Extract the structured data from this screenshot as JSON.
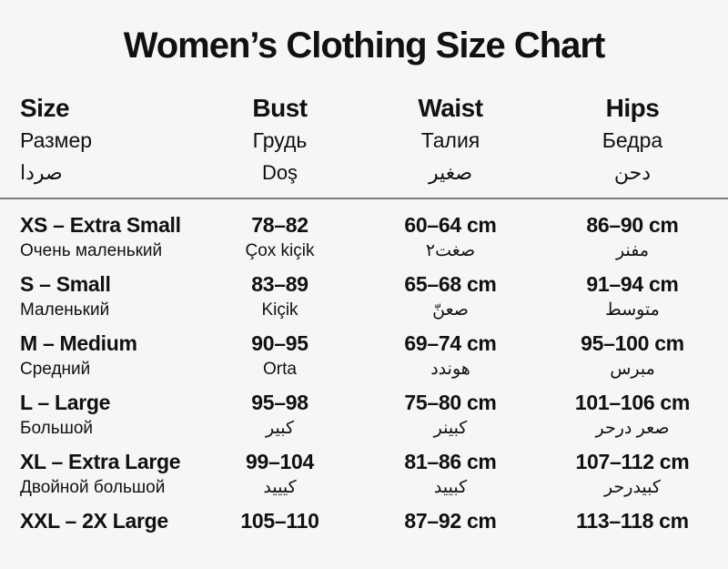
{
  "title": "Women’s Clothing Size Chart",
  "colors": {
    "background": "#f6f6f6",
    "text": "#111111",
    "divider": "#7d7d7d"
  },
  "header": {
    "columns": [
      {
        "en": "Size",
        "ru": "Размер",
        "ar": "صردا"
      },
      {
        "en": "Bust",
        "ru": "Грудь",
        "ar": "Doş"
      },
      {
        "en": "Waist",
        "ru": "Талия",
        "ar": "صغير"
      },
      {
        "en": "Hips",
        "ru": "Бедра",
        "ar": "دحن"
      }
    ]
  },
  "rows": [
    {
      "size_main": "XS – Extra Small",
      "size_sub": "Очень маленький",
      "bust_main": "78–82",
      "bust_sub": "Çox kiçik",
      "waist_main": "60–64 cm",
      "waist_sub": "صغت٢",
      "hips_main": "86–90 cm",
      "hips_sub": "مفنر"
    },
    {
      "size_main": "S – Small",
      "size_sub": "Маленький",
      "bust_main": "83–89",
      "bust_sub": "Kiçik",
      "waist_main": "65–68 cm",
      "waist_sub": "صعنّ",
      "hips_main": "91–94 cm",
      "hips_sub": "متوسط"
    },
    {
      "size_main": "M – Medium",
      "size_sub": "Средний",
      "bust_main": "90–95",
      "bust_sub": "Orta",
      "waist_main": "69–74 cm",
      "waist_sub": "هوندد",
      "hips_main": "95–100 cm",
      "hips_sub": "مبرس"
    },
    {
      "size_main": "L – Large",
      "size_sub": "Большой",
      "bust_main": "95–98",
      "bust_sub": "كبير",
      "waist_main": "75–80 cm",
      "waist_sub": "كبينر",
      "hips_main": "101–106 cm",
      "hips_sub": "صعر درحر"
    },
    {
      "size_main": "XL – Extra Large",
      "size_sub": "Двойной большой",
      "bust_main": "99–104",
      "bust_sub": "كيييد",
      "waist_main": "81–86 cm",
      "waist_sub": "كبييد",
      "hips_main": "107–112 cm",
      "hips_sub": "كبيدرحر"
    },
    {
      "size_main": "XXL – 2X Large",
      "size_sub": "",
      "bust_main": "105–110",
      "bust_sub": "",
      "waist_main": "87–92 cm",
      "waist_sub": "",
      "hips_main": "113–118 cm",
      "hips_sub": ""
    }
  ]
}
